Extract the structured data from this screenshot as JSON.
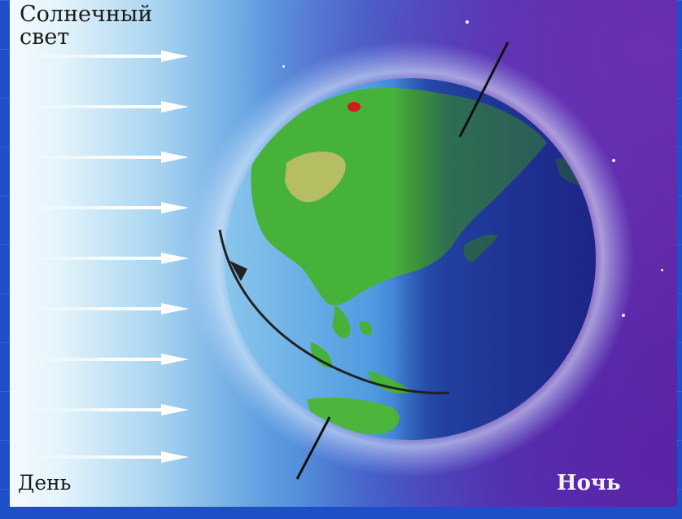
{
  "title_lines": [
    "Солнечный",
    "свет"
  ],
  "labels": {
    "day": "День",
    "night": "Ночь"
  },
  "icons": {
    "sun_rays": "arrow-right-icon",
    "earth": "globe-illustration"
  },
  "colors": {
    "frame": "#1f4fc8",
    "day_side": "#e2f3fb",
    "night_side": "#5a24a8",
    "land": "#3fae35"
  },
  "ray_count": 9
}
